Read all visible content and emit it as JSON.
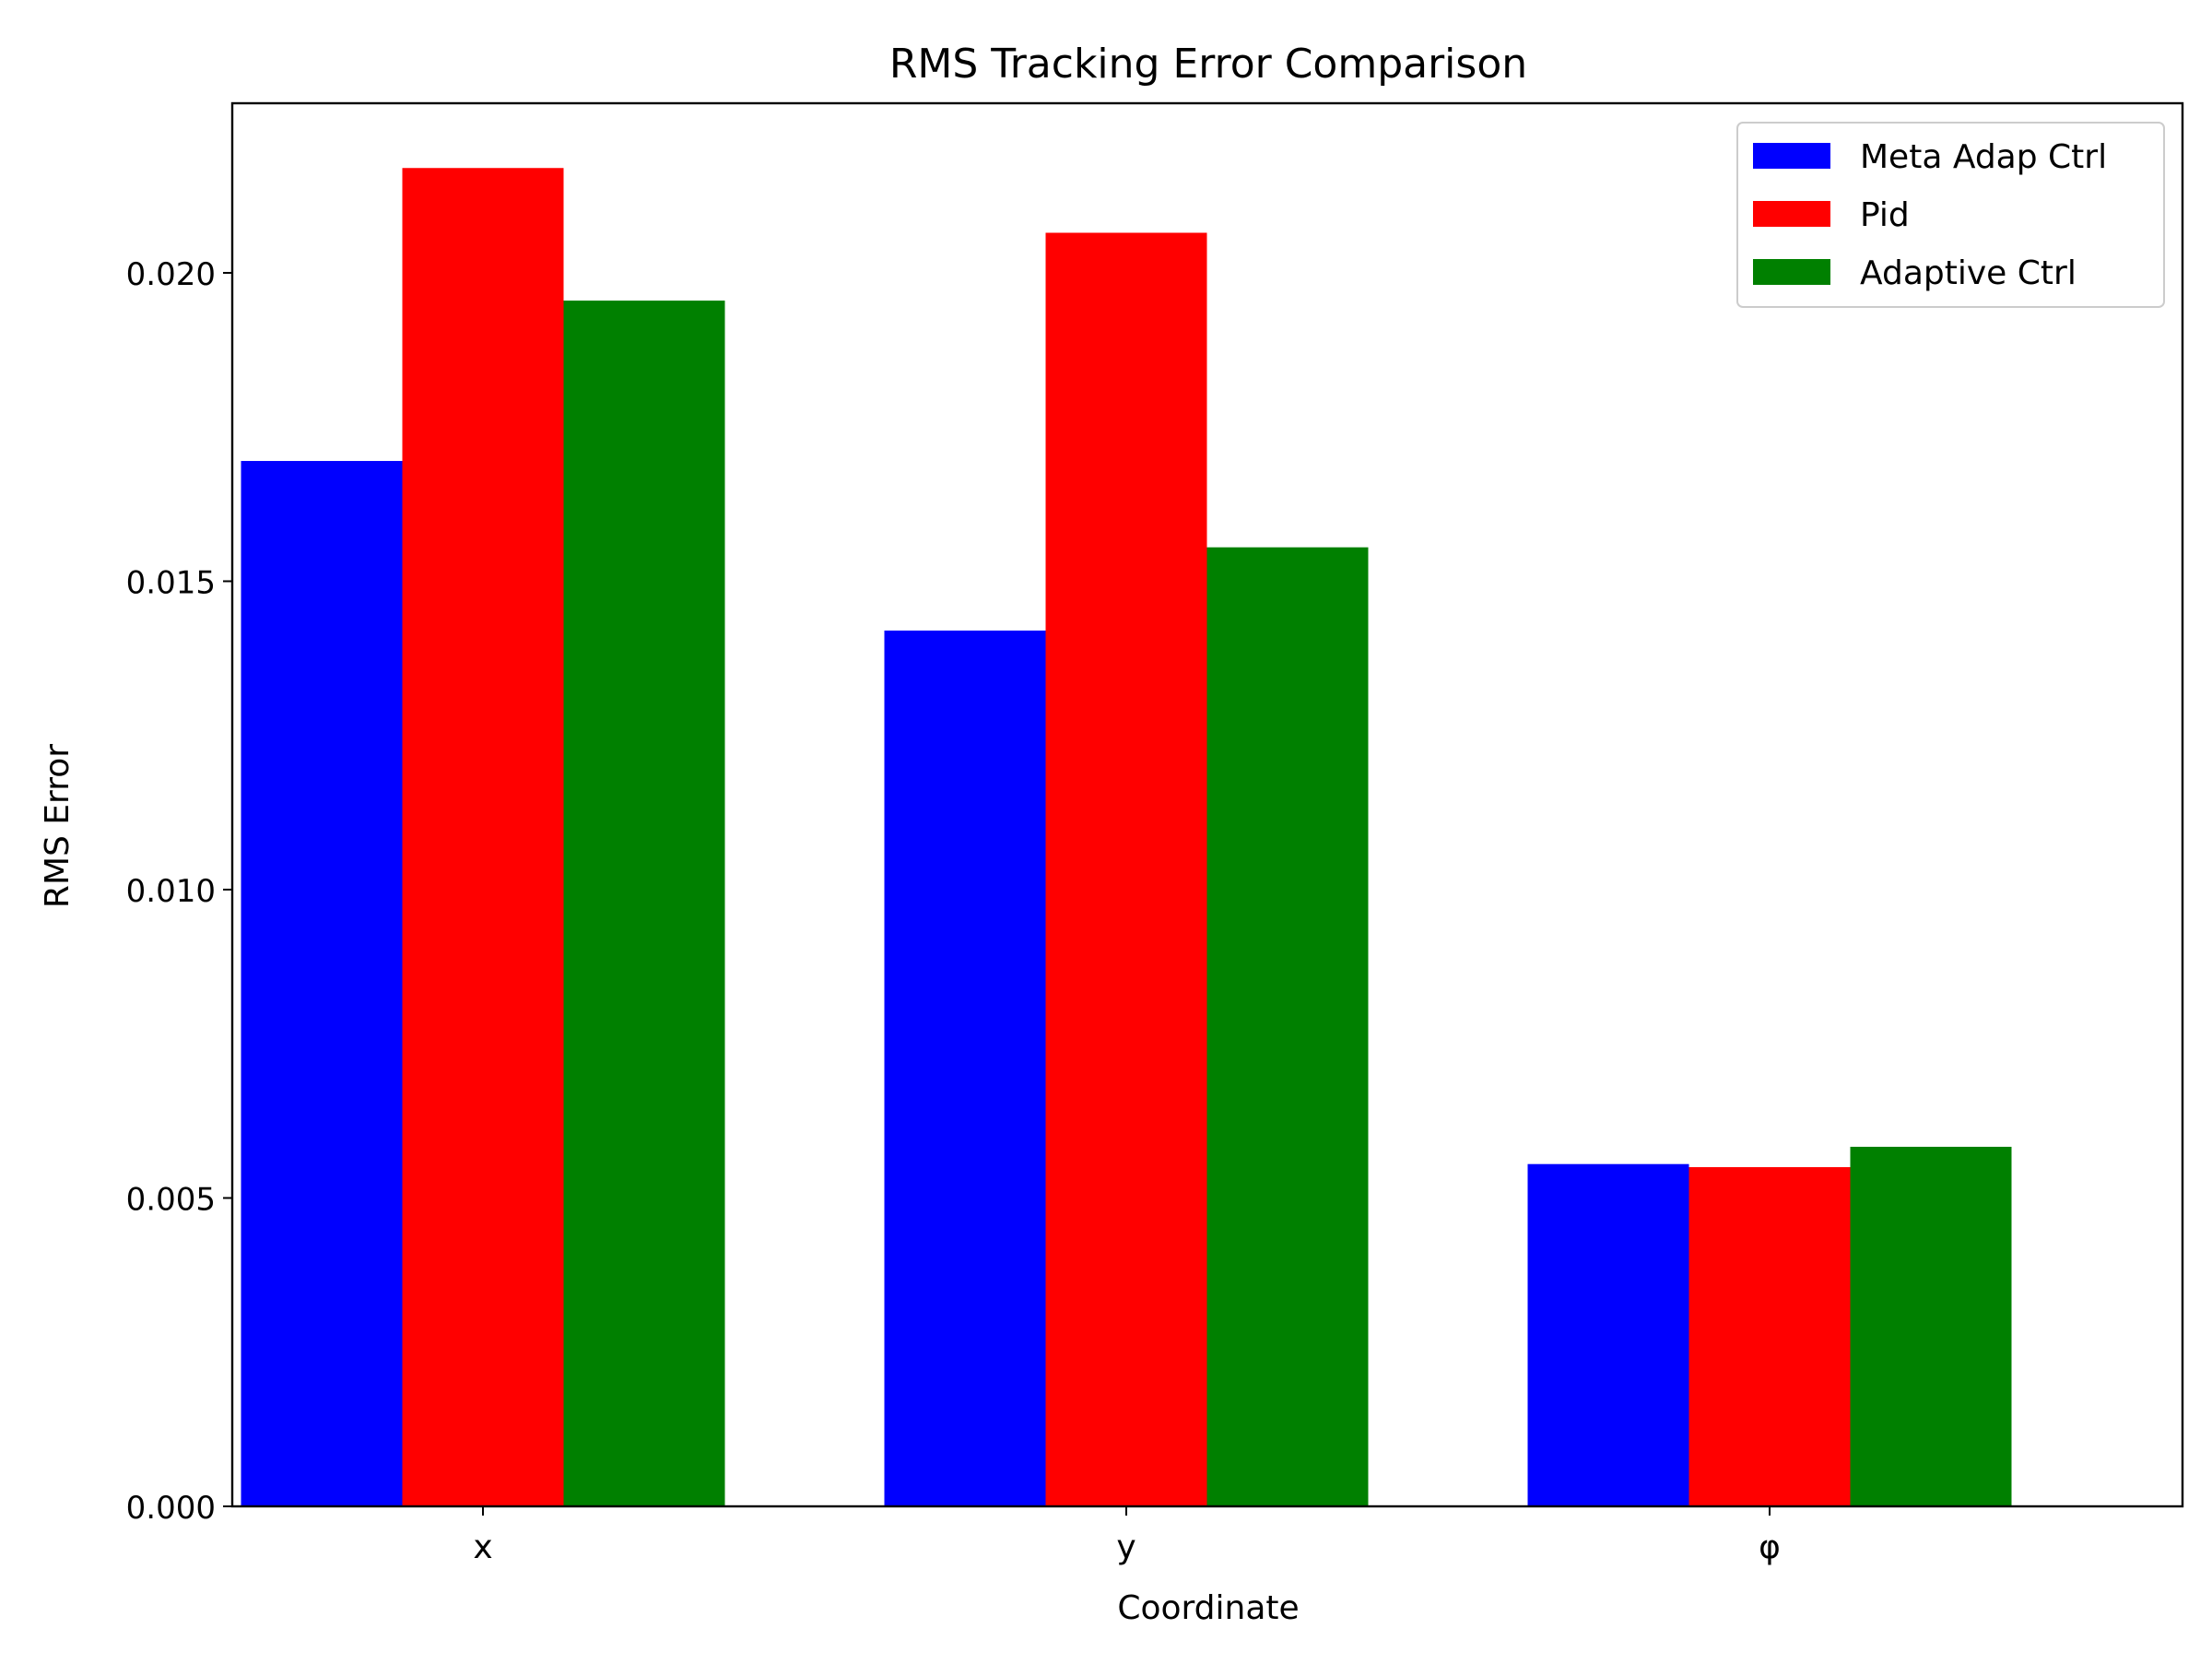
{
  "chart_data": {
    "type": "bar",
    "title": "RMS Tracking Error Comparison",
    "xlabel": "Coordinate",
    "ylabel": "RMS Error",
    "categories": [
      "x",
      "y",
      "φ"
    ],
    "series": [
      {
        "name": "Meta Adap Ctrl",
        "color": "#0000ff",
        "values": [
          0.01695,
          0.0142,
          0.00555
        ]
      },
      {
        "name": "Pid",
        "color": "#ff0000",
        "values": [
          0.0217,
          0.02065,
          0.0055
        ]
      },
      {
        "name": "Adaptive Ctrl",
        "color": "#008000",
        "values": [
          0.01955,
          0.01555,
          0.00583
        ]
      }
    ],
    "ylim": [
      0,
      0.02275
    ],
    "yticks": [
      "0.000",
      "0.005",
      "0.010",
      "0.015",
      "0.020"
    ],
    "ytick_values": [
      0,
      0.005,
      0.01,
      0.015,
      0.02
    ],
    "legend_position": "top-right",
    "grid": false
  }
}
